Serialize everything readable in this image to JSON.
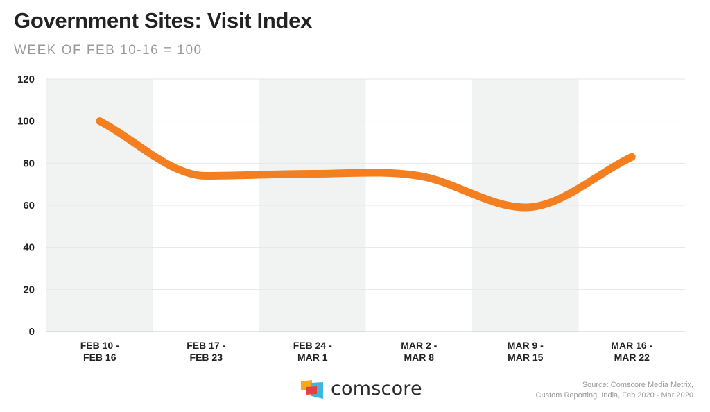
{
  "header": {
    "title": "Government Sites: Visit Index",
    "subtitle": "WEEK OF FEB 10-16 = 100"
  },
  "chart_data": {
    "type": "line",
    "title": "Government Sites: Visit Index",
    "subtitle": "WEEK OF FEB 10-16 = 100",
    "xlabel": "",
    "ylabel": "",
    "categories": [
      [
        "FEB 10 -",
        "FEB 16"
      ],
      [
        "FEB 17 -",
        "FEB 23"
      ],
      [
        "FEB 24 -",
        "MAR 1"
      ],
      [
        "MAR 2 -",
        "MAR 8"
      ],
      [
        "MAR 9 -",
        "MAR 15"
      ],
      [
        "MAR 16 -",
        "MAR 22"
      ]
    ],
    "series": [
      {
        "name": "Visit Index",
        "values": [
          100,
          74,
          75,
          74,
          59,
          83
        ],
        "color": "#f47f20"
      }
    ],
    "ylim": [
      0,
      120
    ],
    "yticks": [
      0,
      20,
      40,
      60,
      80,
      100,
      120
    ],
    "grid": true,
    "band_color": "#f1f2f2"
  },
  "footer": {
    "logo_text": "comscore",
    "source_lines": [
      "Source: Comscore Media Metrix,",
      "Custom Reporting, India, Feb 2020 - Mar 2020"
    ]
  }
}
